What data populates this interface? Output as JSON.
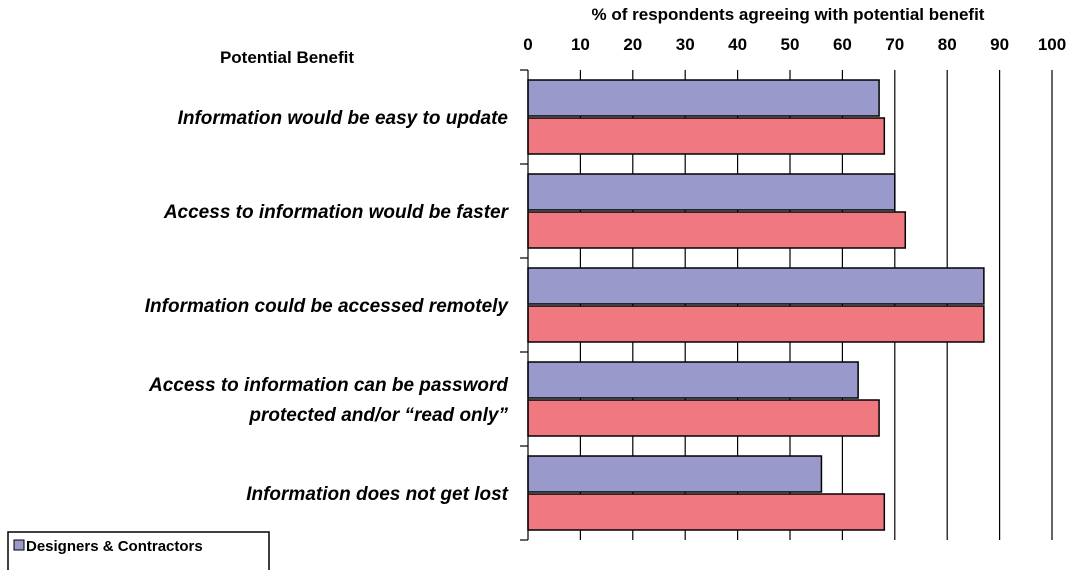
{
  "chart_data": {
    "type": "bar",
    "orientation": "horizontal",
    "xlabel": "% of respondents agreeing with potential benefit",
    "category_header": "Potential Benefit",
    "xlim": [
      0,
      100
    ],
    "xticks": [
      0,
      10,
      20,
      30,
      40,
      50,
      60,
      70,
      80,
      90,
      100
    ],
    "grid": true,
    "categories": [
      [
        "Information would be easy to update"
      ],
      [
        "Access to information would be faster"
      ],
      [
        "Information could be accessed remotely"
      ],
      [
        "Access to information can be password",
        "protected and/or “read only”"
      ],
      [
        "Information does not get lost"
      ]
    ],
    "series": [
      {
        "name": "Designers & Contractors",
        "color": "#9999cc",
        "values": [
          67,
          70,
          87,
          63,
          56
        ]
      },
      {
        "name": "",
        "color": "#f07880",
        "values": [
          68,
          72,
          87,
          67,
          68
        ]
      }
    ],
    "legend": {
      "placement": "bottom-left",
      "entries": [
        "Designers & Contractors"
      ]
    }
  }
}
